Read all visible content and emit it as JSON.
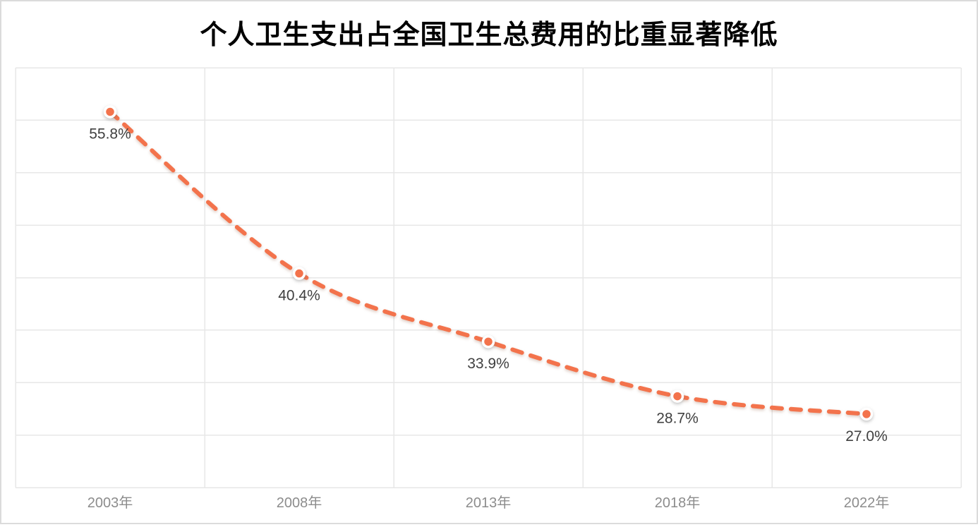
{
  "chart_data": {
    "type": "line",
    "title": "个人卫生支出占全国卫生总费用的比重显著降低",
    "categories": [
      "2003年",
      "2008年",
      "2013年",
      "2018年",
      "2022年"
    ],
    "values": [
      55.8,
      40.4,
      33.9,
      28.7,
      27.0
    ],
    "data_labels": [
      "55.8%",
      "40.4%",
      "33.9%",
      "28.7%",
      "27.0%"
    ],
    "xlabel": "",
    "ylabel": "",
    "ylim": [
      20,
      60
    ],
    "grid_step": 5,
    "grid": "on",
    "legend": "none",
    "line_style": "dashed-smooth",
    "colors": {
      "line": "#F3734C",
      "marker_fill": "#F3734C",
      "marker_ring": "#FFFFFF",
      "grid": "#E7E7E7",
      "frame_border": "#DBDBDB",
      "title_text": "#000000",
      "data_label_text": "#404040",
      "axis_label_text": "#8C8C8C",
      "background": "#FFFFFF"
    }
  }
}
